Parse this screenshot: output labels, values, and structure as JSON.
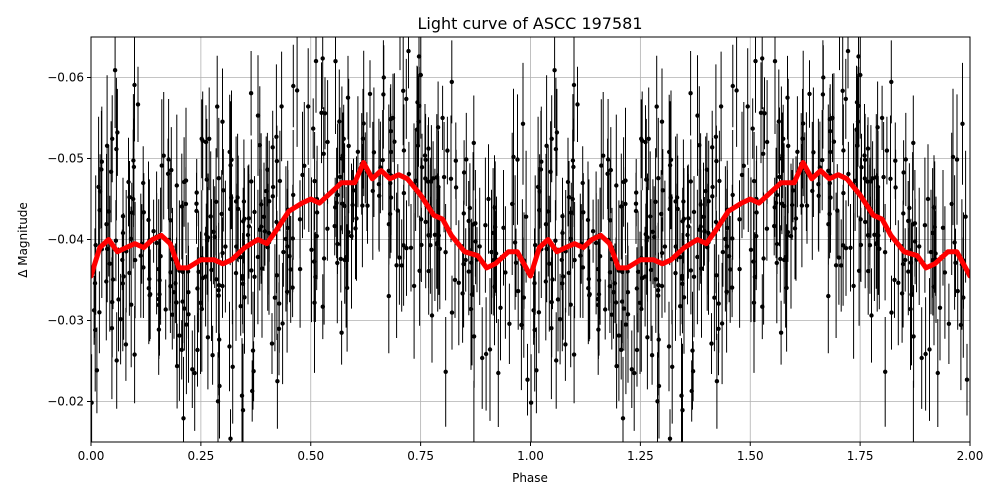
{
  "chart_data": {
    "type": "scatter",
    "title": "Light curve of ASCC 197581",
    "xlabel": "Phase",
    "ylabel": "Δ Magnitude",
    "xlim": [
      0.0,
      2.0
    ],
    "ylim": [
      -0.015,
      -0.065
    ],
    "y_inverted": true,
    "grid": true,
    "x_ticks": [
      0.0,
      0.25,
      0.5,
      0.75,
      1.0,
      1.25,
      1.5,
      1.75,
      2.0
    ],
    "x_tick_labels": [
      "0.00",
      "0.25",
      "0.50",
      "0.75",
      "1.00",
      "1.25",
      "1.50",
      "1.75",
      "2.00"
    ],
    "y_ticks": [
      -0.06,
      -0.05,
      -0.04,
      -0.03,
      -0.02
    ],
    "y_tick_labels": [
      "−0.06",
      "−0.05",
      "−0.04",
      "−0.03",
      "−0.02"
    ],
    "series": [
      {
        "kind": "scatter_with_errorbars",
        "color": "#000000",
        "n_points_per_cycle": 420,
        "scatter_sd": 0.0085,
        "errorbar_mean": 0.006
      },
      {
        "kind": "smoothed_line",
        "color": "#ff0000",
        "x": [
          0.0,
          0.02,
          0.04,
          0.06,
          0.08,
          0.1,
          0.12,
          0.14,
          0.16,
          0.18,
          0.2,
          0.22,
          0.25,
          0.28,
          0.3,
          0.32,
          0.35,
          0.38,
          0.4,
          0.42,
          0.45,
          0.48,
          0.5,
          0.52,
          0.55,
          0.57,
          0.6,
          0.62,
          0.64,
          0.66,
          0.68,
          0.7,
          0.72,
          0.75,
          0.78,
          0.8,
          0.82,
          0.85,
          0.88,
          0.9,
          0.92,
          0.95,
          0.97,
          1.0
        ],
        "y": [
          -0.0355,
          -0.039,
          -0.04,
          -0.0385,
          -0.039,
          -0.0395,
          -0.039,
          -0.04,
          -0.0405,
          -0.0395,
          -0.0365,
          -0.0365,
          -0.0375,
          -0.0375,
          -0.037,
          -0.0375,
          -0.039,
          -0.04,
          -0.0395,
          -0.041,
          -0.0435,
          -0.0445,
          -0.045,
          -0.0445,
          -0.046,
          -0.047,
          -0.047,
          -0.0495,
          -0.0475,
          -0.0485,
          -0.0475,
          -0.048,
          -0.0475,
          -0.0455,
          -0.043,
          -0.0425,
          -0.0405,
          -0.0385,
          -0.038,
          -0.0365,
          -0.037,
          -0.0385,
          -0.0385,
          -0.0355
        ]
      }
    ]
  }
}
